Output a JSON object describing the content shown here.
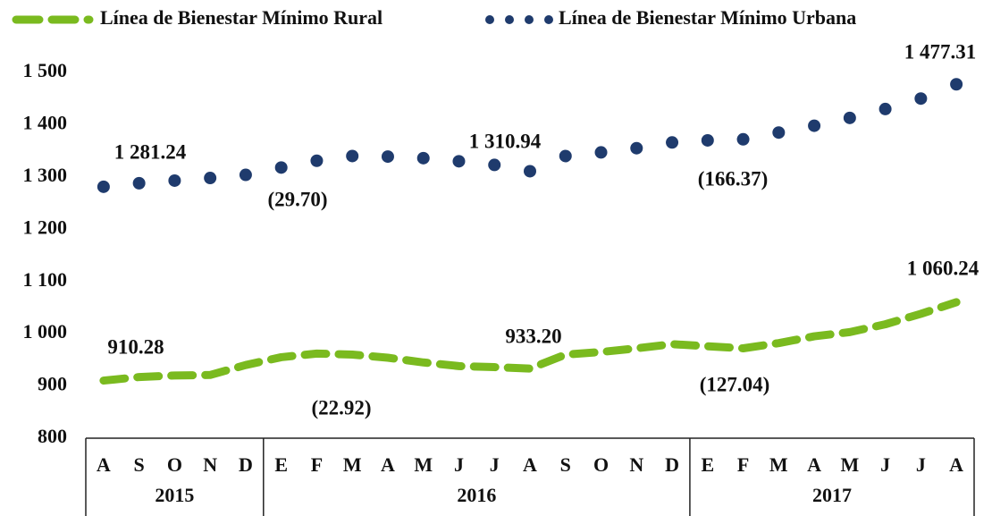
{
  "chart_data": {
    "type": "line",
    "categories": [
      "A",
      "S",
      "O",
      "N",
      "D",
      "E",
      "F",
      "M",
      "A",
      "M",
      "J",
      "J",
      "A",
      "S",
      "O",
      "N",
      "D",
      "E",
      "F",
      "M",
      "A",
      "M",
      "J",
      "J",
      "A"
    ],
    "year_groups": [
      {
        "label": "2015",
        "count": 5
      },
      {
        "label": "2016",
        "count": 12
      },
      {
        "label": "2017",
        "count": 8
      }
    ],
    "series": [
      {
        "name": "Línea de Bienestar Mínimo Rural",
        "color": "#7aba1f",
        "style": "dashed",
        "values": [
          910.28,
          917,
          920,
          921,
          940,
          955,
          962,
          960,
          954,
          945,
          938,
          936,
          933.2,
          960,
          965,
          972,
          980,
          976,
          972,
          982,
          995,
          1003,
          1018,
          1038,
          1060.24
        ]
      },
      {
        "name": "Línea de Bienestar Mínimo Urbana",
        "color": "#1f3b6d",
        "style": "dotted",
        "values": [
          1281.24,
          1288,
          1293,
          1298,
          1304,
          1318,
          1331,
          1340,
          1339,
          1336,
          1330,
          1323,
          1310.94,
          1340,
          1347,
          1355,
          1366,
          1370,
          1372,
          1385,
          1398,
          1413,
          1430,
          1450,
          1477.31
        ]
      }
    ],
    "annotations": [
      "1 281.24",
      "(29.70)",
      "1 310.94",
      "(166.37)",
      "1 477.31",
      "910.28",
      "(22.92)",
      "933.20",
      "(127.04)",
      "1 060.24"
    ],
    "ylim": [
      800,
      1500
    ],
    "yticks": [
      {
        "value": 800,
        "label": "800"
      },
      {
        "value": 900,
        "label": "900"
      },
      {
        "value": 1000,
        "label": "1 000"
      },
      {
        "value": 1100,
        "label": "1 100"
      },
      {
        "value": 1200,
        "label": "1 200"
      },
      {
        "value": 1300,
        "label": "1 300"
      },
      {
        "value": 1400,
        "label": "1 400"
      },
      {
        "value": 1500,
        "label": "1 500"
      }
    ],
    "grid": false,
    "legend": "top"
  }
}
